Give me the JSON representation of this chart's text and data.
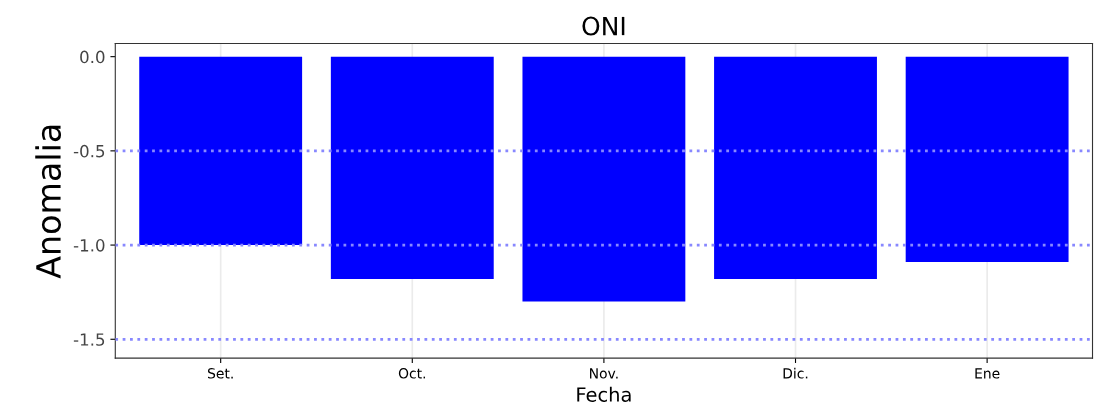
{
  "chart_data": {
    "type": "bar",
    "title": "ONI",
    "xlabel": "Fecha",
    "ylabel": "Anomalia",
    "categories": [
      "Set.",
      "Oct.",
      "Nov.",
      "Dic.",
      "Ene"
    ],
    "values": [
      -1.0,
      -1.18,
      -1.3,
      -1.18,
      -1.09
    ],
    "color": "#0000ff",
    "ylim": [
      -1.6,
      0.07
    ],
    "yticks": [
      {
        "value": 0,
        "label": "0.0"
      },
      {
        "value": -0.5,
        "label": "-0.5"
      },
      {
        "value": -1.0,
        "label": "-1.0"
      },
      {
        "value": -1.5,
        "label": "-1.5"
      }
    ],
    "grid": "x",
    "ref_lines": [
      {
        "axis": "y",
        "value": -0.5,
        "color": "#8888ff",
        "line_style": "dotted"
      },
      {
        "axis": "y",
        "value": -1.0,
        "color": "#8888ff",
        "line_style": "dotted"
      },
      {
        "axis": "y",
        "value": -1.5,
        "color": "#8888ff",
        "line_style": "dotted"
      }
    ]
  }
}
